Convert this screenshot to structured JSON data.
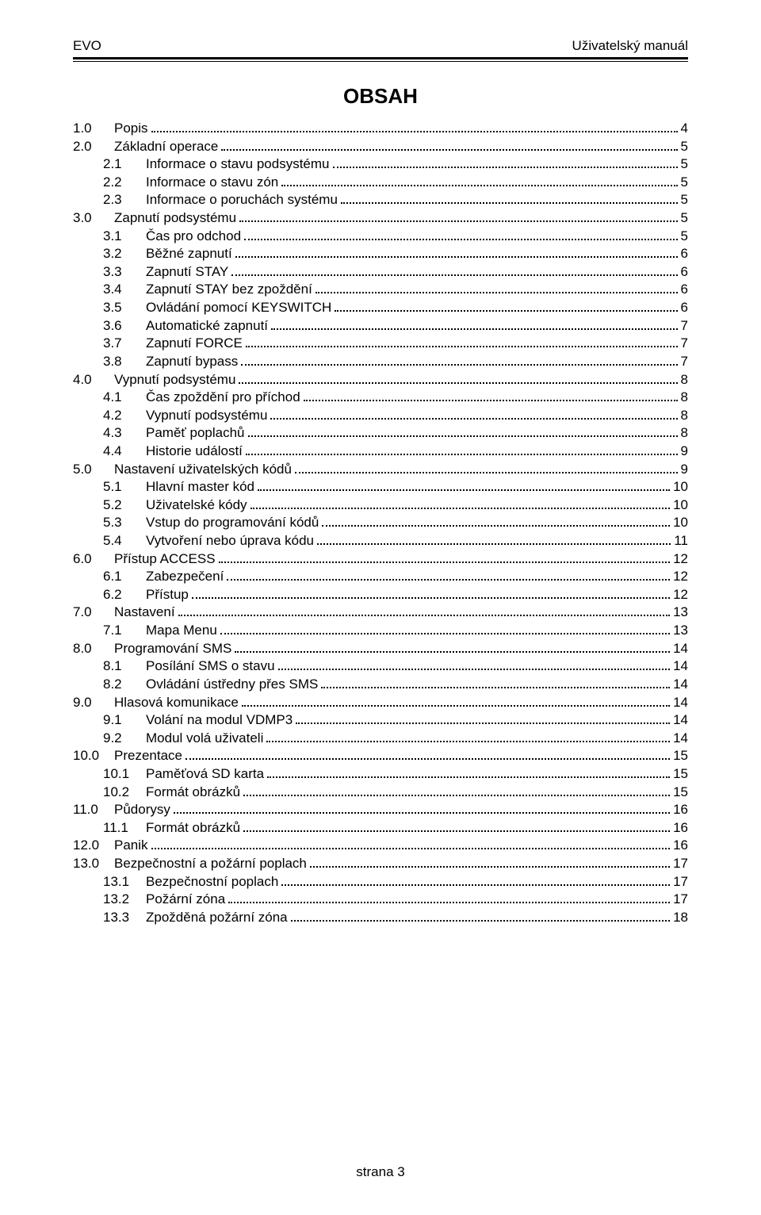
{
  "header": {
    "left": "EVO",
    "right": "Uživatelský manuál"
  },
  "title": "OBSAH",
  "footer": "strana 3",
  "toc": [
    {
      "level": 0,
      "num": "1.0",
      "title": "Popis",
      "page": "4"
    },
    {
      "level": 0,
      "num": "2.0",
      "title": "Základní operace",
      "page": "5"
    },
    {
      "level": 1,
      "num": "2.1",
      "title": "Informace o stavu podsystému",
      "page": "5"
    },
    {
      "level": 1,
      "num": "2.2",
      "title": "Informace o stavu zón",
      "page": "5"
    },
    {
      "level": 1,
      "num": "2.3",
      "title": "Informace o poruchách systému",
      "page": "5"
    },
    {
      "level": 0,
      "num": "3.0",
      "title": "Zapnutí podsystému",
      "page": "5"
    },
    {
      "level": 1,
      "num": "3.1",
      "title": "Čas pro odchod",
      "page": "5"
    },
    {
      "level": 1,
      "num": "3.2",
      "title": "Běžné zapnutí",
      "page": "6"
    },
    {
      "level": 1,
      "num": "3.3",
      "title": "Zapnutí STAY",
      "page": "6"
    },
    {
      "level": 1,
      "num": "3.4",
      "title": "Zapnutí STAY bez zpoždění",
      "page": "6"
    },
    {
      "level": 1,
      "num": "3.5",
      "title": "Ovládání  pomocí KEYSWITCH",
      "page": "6"
    },
    {
      "level": 1,
      "num": "3.6",
      "title": "Automatické zapnutí",
      "page": "7"
    },
    {
      "level": 1,
      "num": "3.7",
      "title": "Zapnutí FORCE",
      "page": "7"
    },
    {
      "level": 1,
      "num": "3.8",
      "title": "Zapnutí bypass",
      "page": "7"
    },
    {
      "level": 0,
      "num": "4.0",
      "title": "Vypnutí podsystému",
      "page": "8"
    },
    {
      "level": 1,
      "num": "4.1",
      "title": "Čas zpoždění pro příchod",
      "page": "8"
    },
    {
      "level": 1,
      "num": "4.2",
      "title": "Vypnutí podsystému",
      "page": "8"
    },
    {
      "level": 1,
      "num": "4.3",
      "title": "Paměť poplachů",
      "page": "8"
    },
    {
      "level": 1,
      "num": "4.4",
      "title": "Historie událostí",
      "page": "9"
    },
    {
      "level": 0,
      "num": "5.0",
      "title": "Nastavení uživatelských kódů",
      "page": "9"
    },
    {
      "level": 1,
      "num": "5.1",
      "title": "Hlavní master kód",
      "page": "10"
    },
    {
      "level": 1,
      "num": "5.2",
      "title": "Uživatelské kódy",
      "page": "10"
    },
    {
      "level": 1,
      "num": "5.3",
      "title": "Vstup do programování kódů",
      "page": "10"
    },
    {
      "level": 1,
      "num": "5.4",
      "title": "Vytvoření nebo úprava kódu",
      "page": "11"
    },
    {
      "level": 0,
      "num": "6.0",
      "title": "Přístup ACCESS",
      "page": "12"
    },
    {
      "level": 1,
      "num": "6.1",
      "title": "Zabezpečení",
      "page": "12"
    },
    {
      "level": 1,
      "num": "6.2",
      "title": "Přístup",
      "page": "12"
    },
    {
      "level": 0,
      "num": "7.0",
      "title": "Nastavení",
      "page": "13"
    },
    {
      "level": 1,
      "num": "7.1",
      "title": "Mapa Menu",
      "page": "13"
    },
    {
      "level": 0,
      "num": "8.0",
      "title": "Programování SMS",
      "page": "14"
    },
    {
      "level": 1,
      "num": "8.1",
      "title": "Posílání SMS o stavu",
      "page": "14"
    },
    {
      "level": 1,
      "num": "8.2",
      "title": "Ovládání ústředny přes SMS",
      "page": "14"
    },
    {
      "level": 0,
      "num": "9.0",
      "title": "Hlasová komunikace",
      "page": "14"
    },
    {
      "level": 1,
      "num": "9.1",
      "title": "Volání na modul VDMP3",
      "page": "14"
    },
    {
      "level": 1,
      "num": "9.2",
      "title": "Modul volá uživateli",
      "page": "14"
    },
    {
      "level": 0,
      "num": "10.0",
      "title": "Prezentace",
      "page": "15"
    },
    {
      "level": 1,
      "num": "10.1",
      "title": "Paměťová SD karta",
      "page": "15"
    },
    {
      "level": 1,
      "num": "10.2",
      "title": "Formát obrázků",
      "page": "15"
    },
    {
      "level": 0,
      "num": "11.0",
      "title": "Půdorysy",
      "page": "16"
    },
    {
      "level": 1,
      "num": "11.1",
      "title": "Formát obrázků",
      "page": "16"
    },
    {
      "level": 0,
      "num": "12.0",
      "title": "Panik",
      "page": "16"
    },
    {
      "level": 0,
      "num": "13.0",
      "title": "Bezpečnostní a požární poplach",
      "page": "17"
    },
    {
      "level": 1,
      "num": "13.1",
      "title": "Bezpečnostní poplach",
      "page": "17"
    },
    {
      "level": 1,
      "num": "13.2",
      "title": "Požární zóna",
      "page": "17"
    },
    {
      "level": 1,
      "num": "13.3",
      "title": "Zpožděná požární zóna",
      "page": "18"
    }
  ]
}
